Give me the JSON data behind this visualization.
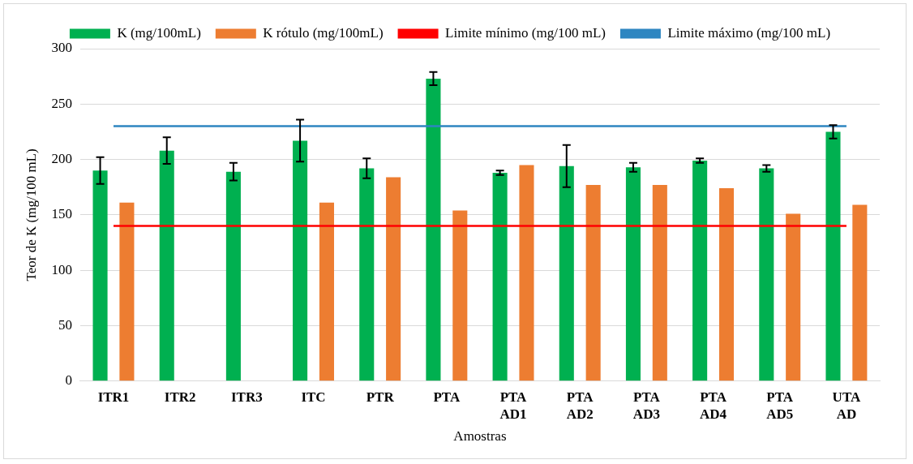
{
  "chart_data": {
    "type": "bar",
    "xlabel": "Amostras",
    "ylabel": "Teor de K (mg/100 mL)",
    "categories": [
      "ITR1",
      "ITR2",
      "ITR3",
      "ITC",
      "PTR",
      "PTA",
      "PTA AD1",
      "PTA AD2",
      "PTA AD3",
      "PTA AD4",
      "PTA AD5",
      "UTA AD"
    ],
    "series": [
      {
        "name": "K (mg/100mL)",
        "color": "#00b050",
        "values": [
          190,
          208,
          189,
          217,
          192,
          273,
          188,
          194,
          193,
          199,
          192,
          225
        ],
        "errors": [
          12,
          12,
          8,
          19,
          9,
          6,
          2,
          19,
          4,
          2,
          3,
          6
        ]
      },
      {
        "name": "K rótulo (mg/100mL)",
        "color": "#ed7d31",
        "values": [
          161,
          null,
          null,
          161,
          184,
          154,
          195,
          177,
          177,
          174,
          151,
          159
        ]
      },
      {
        "name": "Limite mínimo (mg/100 mL)",
        "type": "line",
        "color": "#ff0000",
        "values": [
          140,
          140,
          140,
          140,
          140,
          140,
          140,
          140,
          140,
          140,
          140,
          140
        ]
      },
      {
        "name": "Limite máximo (mg/100 mL)",
        "type": "line",
        "color": "#2e86c1",
        "values": [
          230,
          230,
          230,
          230,
          230,
          230,
          230,
          230,
          230,
          230,
          230,
          230
        ]
      }
    ],
    "ylim": [
      0,
      300
    ],
    "yticks": [
      0,
      50,
      100,
      150,
      200,
      250,
      300
    ],
    "grid": "y",
    "legend": "top",
    "marker": "none"
  }
}
